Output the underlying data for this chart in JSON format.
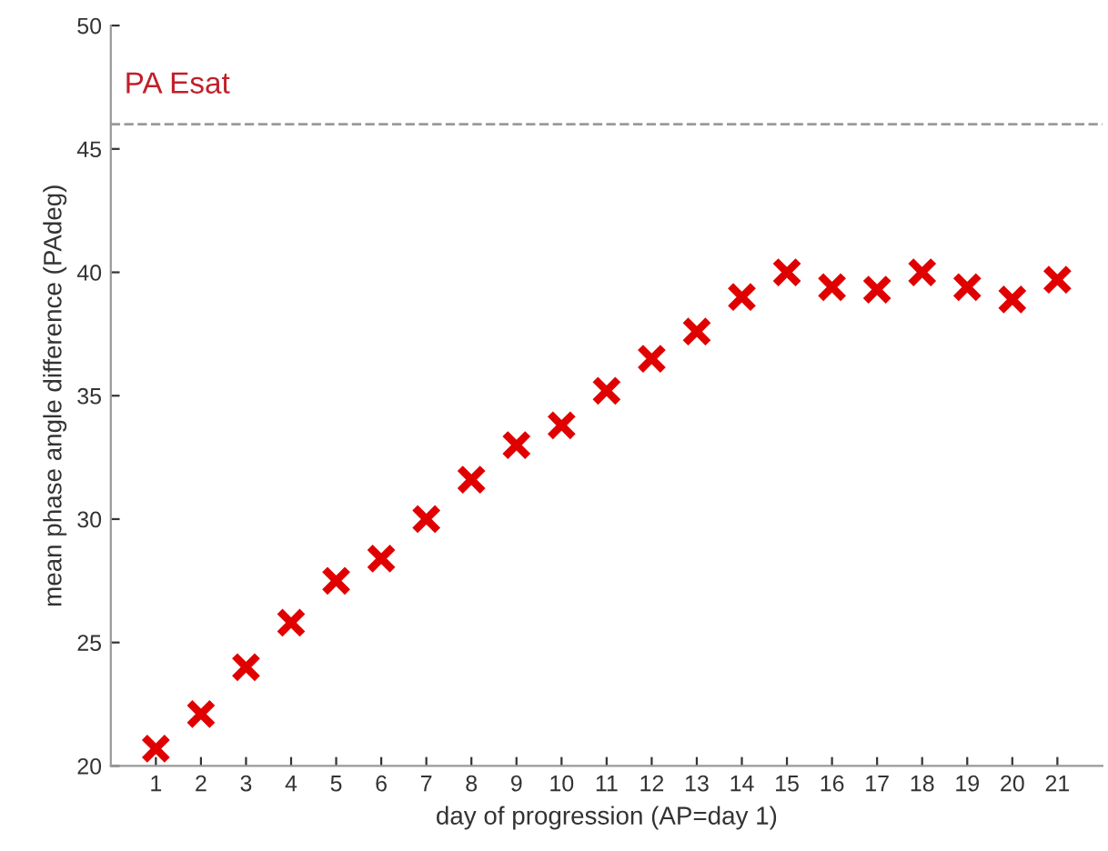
{
  "chart_data": {
    "type": "scatter",
    "xlabel": "day of progression (AP=day 1)",
    "ylabel": "mean phase angle difference (PAdeg)",
    "x": [
      1,
      2,
      3,
      4,
      5,
      6,
      7,
      8,
      9,
      10,
      11,
      12,
      13,
      14,
      15,
      16,
      17,
      18,
      19,
      20,
      21
    ],
    "series": [
      {
        "color": "#e00000",
        "values": [
          20.7,
          22.1,
          24.0,
          25.8,
          27.5,
          28.4,
          30.0,
          31.6,
          33.0,
          33.8,
          35.2,
          36.5,
          37.6,
          39.0,
          40.0,
          39.4,
          39.3,
          40.0,
          39.4,
          38.9,
          39.7
        ]
      }
    ],
    "marker": "cross",
    "xlim": [
      0,
      22
    ],
    "xticks": [
      1,
      2,
      3,
      4,
      5,
      6,
      7,
      8,
      9,
      10,
      11,
      12,
      13,
      14,
      15,
      16,
      17,
      18,
      19,
      20,
      21
    ],
    "ylim": [
      20,
      50
    ],
    "yticks": [
      20,
      25,
      30,
      35,
      40,
      45,
      50
    ],
    "ref_lines": [
      {
        "axis": "y",
        "value": 46,
        "label": "PA Esat",
        "color": "#9a9a9a",
        "line_style": "dashed"
      }
    ]
  }
}
